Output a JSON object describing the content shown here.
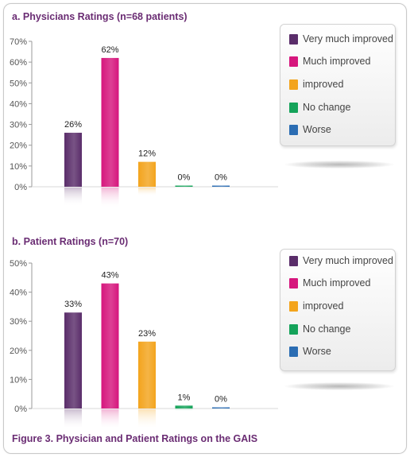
{
  "caption": "Figure 3. Physician and Patient Ratings on the GAIS",
  "legend": [
    {
      "label": "Very much improved",
      "color": "#5a2d6a"
    },
    {
      "label": "Much improved",
      "color": "#d6167d"
    },
    {
      "label": "improved",
      "color": "#f3a41d"
    },
    {
      "label": "No change",
      "color": "#15a35a"
    },
    {
      "label": "Worse",
      "color": "#2b6db3"
    }
  ],
  "chart_data": [
    {
      "type": "bar",
      "title": "a. Physicians Ratings (n=68 patients)",
      "categories": [
        "Very much improved",
        "Much improved",
        "improved",
        "No change",
        "Worse"
      ],
      "values": [
        26,
        62,
        12,
        0,
        0
      ],
      "data_labels": [
        "26%",
        "62%",
        "12%",
        "0%",
        "0%"
      ],
      "colors": [
        "#5a2d6a",
        "#d6167d",
        "#f3a41d",
        "#15a35a",
        "#2b6db3"
      ],
      "ylim": [
        0,
        70
      ],
      "yticks": [
        "0%",
        "10%",
        "20%",
        "30%",
        "40%",
        "50%",
        "60%",
        "70%"
      ],
      "xlabel": "",
      "ylabel": "",
      "grid": false,
      "legend_position": "right"
    },
    {
      "type": "bar",
      "title": "b. Patient Ratings (n=70)",
      "categories": [
        "Very much improved",
        "Much improved",
        "improved",
        "No change",
        "Worse"
      ],
      "values": [
        33,
        43,
        23,
        1,
        0
      ],
      "data_labels": [
        "33%",
        "43%",
        "23%",
        "1%",
        "0%"
      ],
      "colors": [
        "#5a2d6a",
        "#d6167d",
        "#f3a41d",
        "#15a35a",
        "#2b6db3"
      ],
      "ylim": [
        0,
        50
      ],
      "yticks": [
        "0%",
        "10%",
        "20%",
        "30%",
        "40%",
        "50%"
      ],
      "xlabel": "",
      "ylabel": "",
      "grid": false,
      "legend_position": "right"
    }
  ]
}
